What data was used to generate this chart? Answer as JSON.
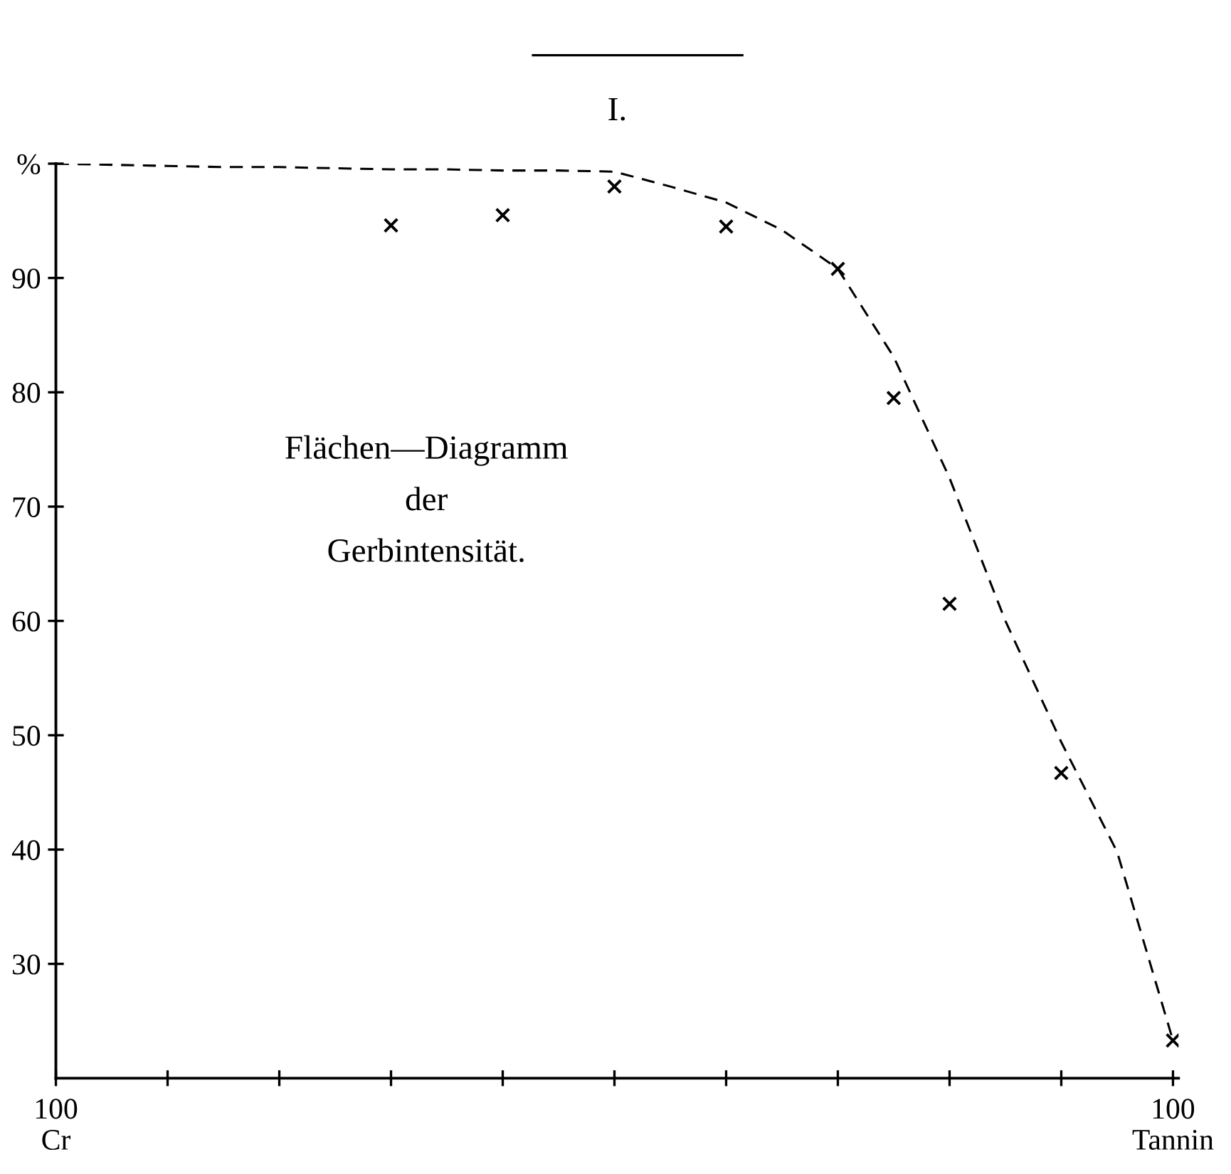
{
  "chart_data": {
    "type": "scatter",
    "title": "I.",
    "annotations": [
      "Flächen—Diagramm\nder\nGerbintensität."
    ],
    "categories": [
      "100\nCr",
      null,
      null,
      null,
      null,
      null,
      null,
      null,
      null,
      null,
      null,
      null,
      null,
      null,
      null,
      null,
      null,
      null,
      null,
      null,
      "100\nTannin"
    ],
    "series": [
      {
        "color": "#000000",
        "marker": "cross",
        "values": [
          null,
          null,
          null,
          null,
          null,
          null,
          94.6,
          null,
          95.5,
          null,
          98.0,
          null,
          94.5,
          null,
          90.8,
          79.5,
          61.5,
          null,
          46.7,
          null,
          23.3
        ]
      },
      {
        "type": "line",
        "color": "#000000",
        "marker": "none",
        "line_style": "dashed",
        "values": [
          100,
          99.9,
          99.8,
          99.7,
          99.7,
          99.6,
          99.5,
          99.5,
          99.4,
          99.4,
          99.3,
          98.0,
          96.6,
          94.2,
          90.8,
          83.1,
          72.5,
          60,
          49.4,
          39.8,
          23.3
        ]
      }
    ],
    "ylim": [
      20,
      100
    ],
    "yticks": [
      30,
      40,
      50,
      60,
      70,
      80,
      90,
      {
        "value": 100,
        "label": "%"
      }
    ],
    "grid": false,
    "legend": false
  }
}
